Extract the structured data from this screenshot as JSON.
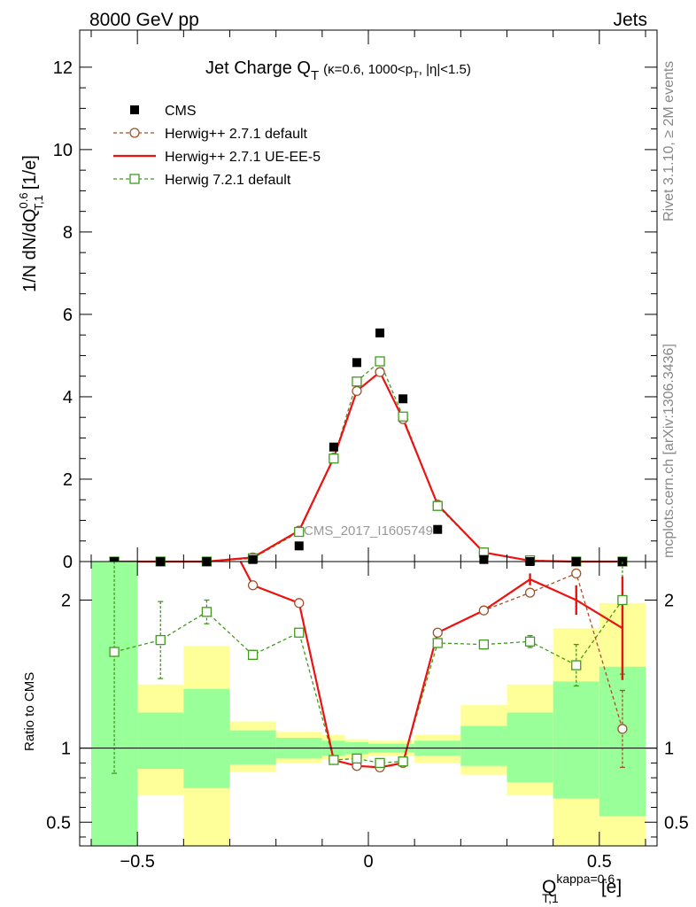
{
  "header": {
    "left": "8000 GeV pp",
    "right": "Jets"
  },
  "side_labels": {
    "top": "Rivet 3.1.10, ≥ 2M events",
    "bottom": "mcplots.cern.ch [arXiv:1306.3436]"
  },
  "watermark": "CMS_2017_I1605749",
  "chart_data": [
    {
      "type": "scatter",
      "panel": "main",
      "title": "Jet Charge Q",
      "title_sub": "T",
      "title_detail": "(κ=0.6, 1000<p",
      "title_detail_sub": "T",
      "title_detail_end": ", |η|<1.5)",
      "ylabel": "1/N dN/dQ",
      "ylabel_sup": "0.6",
      "ylabel_sub": "T,1",
      "ylabel_unit": "[1/e]",
      "ylim": [
        0,
        12.9
      ],
      "xlim": [
        -0.6,
        0.6
      ],
      "yticks": [
        "0",
        "2",
        "4",
        "6",
        "8",
        "10",
        "12"
      ],
      "legend_position": "top-left",
      "x": [
        -0.55,
        -0.45,
        -0.35,
        -0.25,
        -0.15,
        -0.075,
        -0.025,
        0.025,
        0.075,
        0.15,
        0.25,
        0.35,
        0.45,
        0.55
      ],
      "series": [
        {
          "name": "CMS",
          "color": "#000000",
          "marker": "filled-square",
          "values": [
            0.0,
            0.0,
            0.0,
            0.05,
            0.38,
            2.78,
            4.83,
            5.55,
            3.95,
            0.78,
            0.05,
            0.0,
            0.0,
            0.0
          ]
        },
        {
          "name": "Herwig++ 2.7.1 default",
          "color": "#a0522d",
          "marker": "open-circle",
          "line": "dashed",
          "values": [
            0.0,
            0.0,
            0.0,
            0.1,
            0.75,
            2.52,
            4.14,
            4.6,
            3.46,
            1.38,
            0.22,
            0.02,
            0.0,
            0.0
          ]
        },
        {
          "name": "Herwig++ 2.7.1 UE-EE-5",
          "color": "#ee1111",
          "marker": "none",
          "line": "solid",
          "values": [
            0.0,
            0.0,
            0.0,
            0.1,
            0.75,
            2.52,
            4.14,
            4.6,
            3.46,
            1.38,
            0.22,
            0.02,
            0.0,
            0.0
          ]
        },
        {
          "name": "Herwig 7.2.1 default",
          "color": "#3f9b1f",
          "marker": "open-square",
          "line": "dashed",
          "values": [
            0.0,
            0.0,
            0.0,
            0.08,
            0.72,
            2.5,
            4.37,
            4.86,
            3.52,
            1.35,
            0.22,
            0.03,
            0.0,
            0.0
          ]
        }
      ]
    },
    {
      "type": "line",
      "panel": "ratio",
      "ylabel": "Ratio to CMS",
      "ylim": [
        0.34,
        2.26
      ],
      "xlim": [
        -0.6,
        0.6
      ],
      "yticks": [
        "0.5",
        "1",
        "2"
      ],
      "xticks": [
        "−0.5",
        "0",
        "0.5"
      ],
      "xlabel": "Q",
      "xlabel_sup": "kappa=0.6",
      "xlabel_sub": "T,1",
      "xlabel_unit": "[e]",
      "bands": {
        "edges": [
          -0.6,
          -0.5,
          -0.4,
          -0.3,
          -0.2,
          -0.1,
          -0.05,
          0.0,
          0.05,
          0.1,
          0.2,
          0.3,
          0.4,
          0.5,
          0.6
        ],
        "green_lo": [
          0.34,
          0.86,
          0.73,
          0.89,
          0.93,
          0.95,
          0.96,
          0.97,
          0.97,
          0.95,
          0.88,
          0.77,
          0.66,
          0.54
        ],
        "green_hi": [
          2.26,
          1.24,
          1.4,
          1.12,
          1.07,
          1.05,
          1.04,
          1.03,
          1.03,
          1.05,
          1.15,
          1.24,
          1.45,
          1.55
        ],
        "yellow_lo": [
          0.34,
          0.68,
          0.34,
          0.84,
          0.9,
          0.92,
          0.93,
          0.95,
          0.95,
          0.9,
          0.82,
          0.68,
          0.34,
          0.34
        ],
        "yellow_hi": [
          2.26,
          1.43,
          1.69,
          1.18,
          1.11,
          1.09,
          1.06,
          1.05,
          1.05,
          1.09,
          1.29,
          1.43,
          1.81,
          1.98
        ]
      },
      "x": [
        -0.55,
        -0.45,
        -0.35,
        -0.25,
        -0.15,
        -0.075,
        -0.025,
        0.025,
        0.075,
        0.15,
        0.25,
        0.35,
        0.45,
        0.55
      ],
      "series": [
        {
          "name": "Herwig++ 2.7.1 default",
          "color": "#a0522d",
          "values": [
            null,
            null,
            null,
            2.1,
            1.98,
            0.92,
            0.88,
            0.87,
            0.9,
            1.78,
            1.93,
            2.05,
            2.18,
            1.13
          ],
          "err_lo": [
            0,
            0,
            0,
            0,
            0,
            0,
            0,
            0,
            0,
            0,
            0,
            0,
            0.02,
            0.26
          ],
          "err_hi": [
            0,
            0,
            0,
            0,
            0,
            0,
            0,
            0,
            0,
            0,
            0,
            0,
            0.02,
            0.26
          ]
        },
        {
          "name": "Herwig++ 2.7.1 UE-EE-5",
          "color": "#ee1111",
          "values": [
            null,
            null,
            2.7,
            2.1,
            1.98,
            0.92,
            0.88,
            0.87,
            0.9,
            1.78,
            1.93,
            2.14,
            2.0,
            1.81
          ],
          "err_lo": [
            0,
            0,
            0,
            0,
            0,
            0,
            0,
            0,
            0,
            0,
            0,
            0.04,
            0.1,
            0.35
          ],
          "err_hi": [
            0,
            0,
            0,
            0,
            0,
            0,
            0,
            0,
            0,
            0,
            0,
            0.04,
            0.1,
            0.35
          ]
        },
        {
          "name": "Herwig 7.2.1 default",
          "color": "#3f9b1f",
          "values": [
            1.65,
            1.73,
            1.92,
            1.63,
            1.78,
            0.92,
            0.93,
            0.9,
            0.91,
            1.71,
            1.7,
            1.72,
            1.56,
            2.0
          ],
          "err_lo": [
            0.82,
            0.26,
            0.08,
            0.03,
            0.02,
            0.01,
            0.01,
            0.01,
            0.01,
            0.02,
            0.03,
            0.04,
            0.14,
            0.5
          ],
          "err_hi": [
            0.82,
            0.26,
            0.08,
            0.03,
            0.02,
            0.01,
            0.01,
            0.01,
            0.01,
            0.02,
            0.03,
            0.04,
            0.14,
            0.5
          ]
        }
      ]
    }
  ]
}
